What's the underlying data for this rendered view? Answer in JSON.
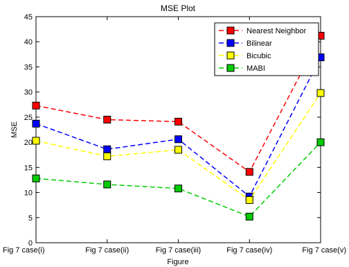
{
  "chart_data": {
    "type": "line",
    "title": "MSE Plot",
    "xlabel": "Figure",
    "ylabel": "MSE",
    "categories": [
      "Fig 7 case(i)",
      "Fig 7 case(ii)",
      "Fig 7 case(iii)",
      "Fig 7 case(iv)",
      "Fig 7 case(v)"
    ],
    "ylim": [
      0,
      45
    ],
    "yticks": [
      0,
      5,
      10,
      15,
      20,
      25,
      30,
      35,
      40,
      45
    ],
    "grid": false,
    "legend_position": "top-right",
    "series": [
      {
        "name": "Nearest Neighbor",
        "color": "#ff0000",
        "values": [
          27.3,
          24.5,
          24.1,
          14.1,
          41.2
        ]
      },
      {
        "name": "Bilinear",
        "color": "#0000ff",
        "values": [
          23.7,
          18.6,
          20.6,
          9.2,
          36.9
        ]
      },
      {
        "name": "Bicubic",
        "color": "#ffff00",
        "values": [
          20.3,
          17.2,
          18.5,
          8.5,
          29.8
        ]
      },
      {
        "name": "MABI",
        "color": "#00cc00",
        "values": [
          12.8,
          11.6,
          10.8,
          5.2,
          20.0
        ]
      }
    ]
  }
}
